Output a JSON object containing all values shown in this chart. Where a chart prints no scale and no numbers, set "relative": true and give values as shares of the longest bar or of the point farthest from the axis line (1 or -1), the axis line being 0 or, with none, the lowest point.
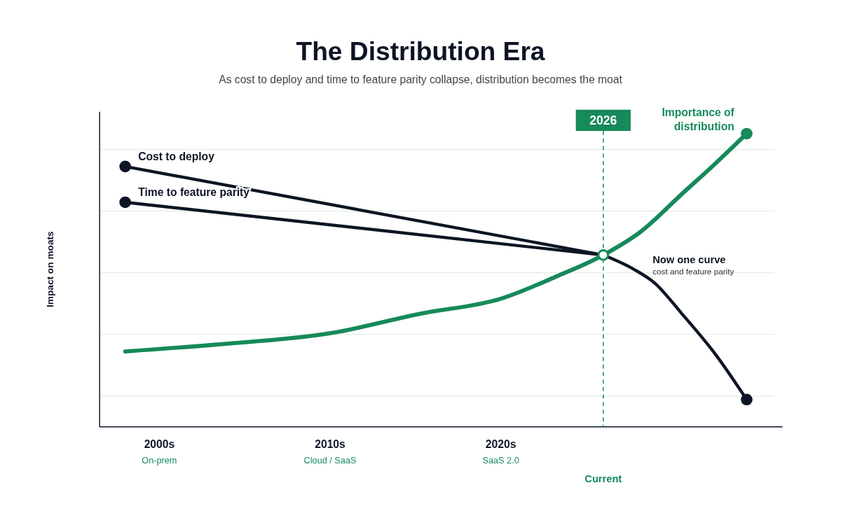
{
  "chart_data": {
    "type": "line",
    "title": "The Distribution Era",
    "subtitle": "As cost to deploy and time to feature parity collapse, distribution becomes the moat",
    "ylabel": "Impact on moats",
    "relative": true,
    "grid": "y",
    "marker": "none",
    "line_style": "solid",
    "xlim": [
      1996.5,
      2036.5
    ],
    "xticks": [
      {
        "value": 2000,
        "label": "2000s\nOn-prem"
      },
      {
        "value": 2010,
        "label": "2010s\nCloud / SaaS"
      },
      {
        "value": 2020,
        "label": "2020s\nSaaS 2.0"
      }
    ],
    "ref_lines": [
      {
        "axis": "x",
        "value": 2026,
        "label": "2026",
        "color": "#168a5a",
        "line_style": "dashed"
      }
    ],
    "annotations": [
      "Current",
      "cost and feature parity"
    ],
    "series": [
      {
        "name": "Cost to deploy",
        "color": "#0d1524",
        "x": [
          1998,
          2026
        ],
        "values": [
          0.888,
          0.586
        ]
      },
      {
        "name": "Time to feature parity",
        "color": "#0d1524",
        "x": [
          1998,
          2026
        ],
        "values": [
          0.766,
          0.586
        ]
      },
      {
        "name": "Importance of distribution",
        "color": "#168a5a",
        "x": [
          1998,
          2003.2,
          2010.1,
          2015.3,
          2020,
          2023.3,
          2026,
          2028.2,
          2030.6,
          2032.6,
          2034.4
        ],
        "values": [
          0.257,
          0.28,
          0.32,
          0.386,
          0.437,
          0.514,
          0.586,
          0.666,
          0.794,
          0.9,
          1
        ]
      },
      {
        "name": "Now one curve",
        "color": "#0d1524",
        "x": [
          2026,
          2027.8,
          2029,
          2030.6,
          2032.6,
          2034.4
        ],
        "values": [
          0.586,
          0.537,
          0.491,
          0.386,
          0.245,
          0.093
        ]
      },
      {
        "type": "scatter",
        "marker": "circle",
        "x": [
          1998,
          1998,
          2026,
          2034.4,
          2034.4
        ],
        "values": [
          0.888,
          0.766,
          0.586,
          1,
          0.093
        ],
        "colors": [
          "#0d1524",
          "#0d1524",
          "#168a5a",
          "#168a5a",
          "#0d1524"
        ]
      }
    ]
  }
}
